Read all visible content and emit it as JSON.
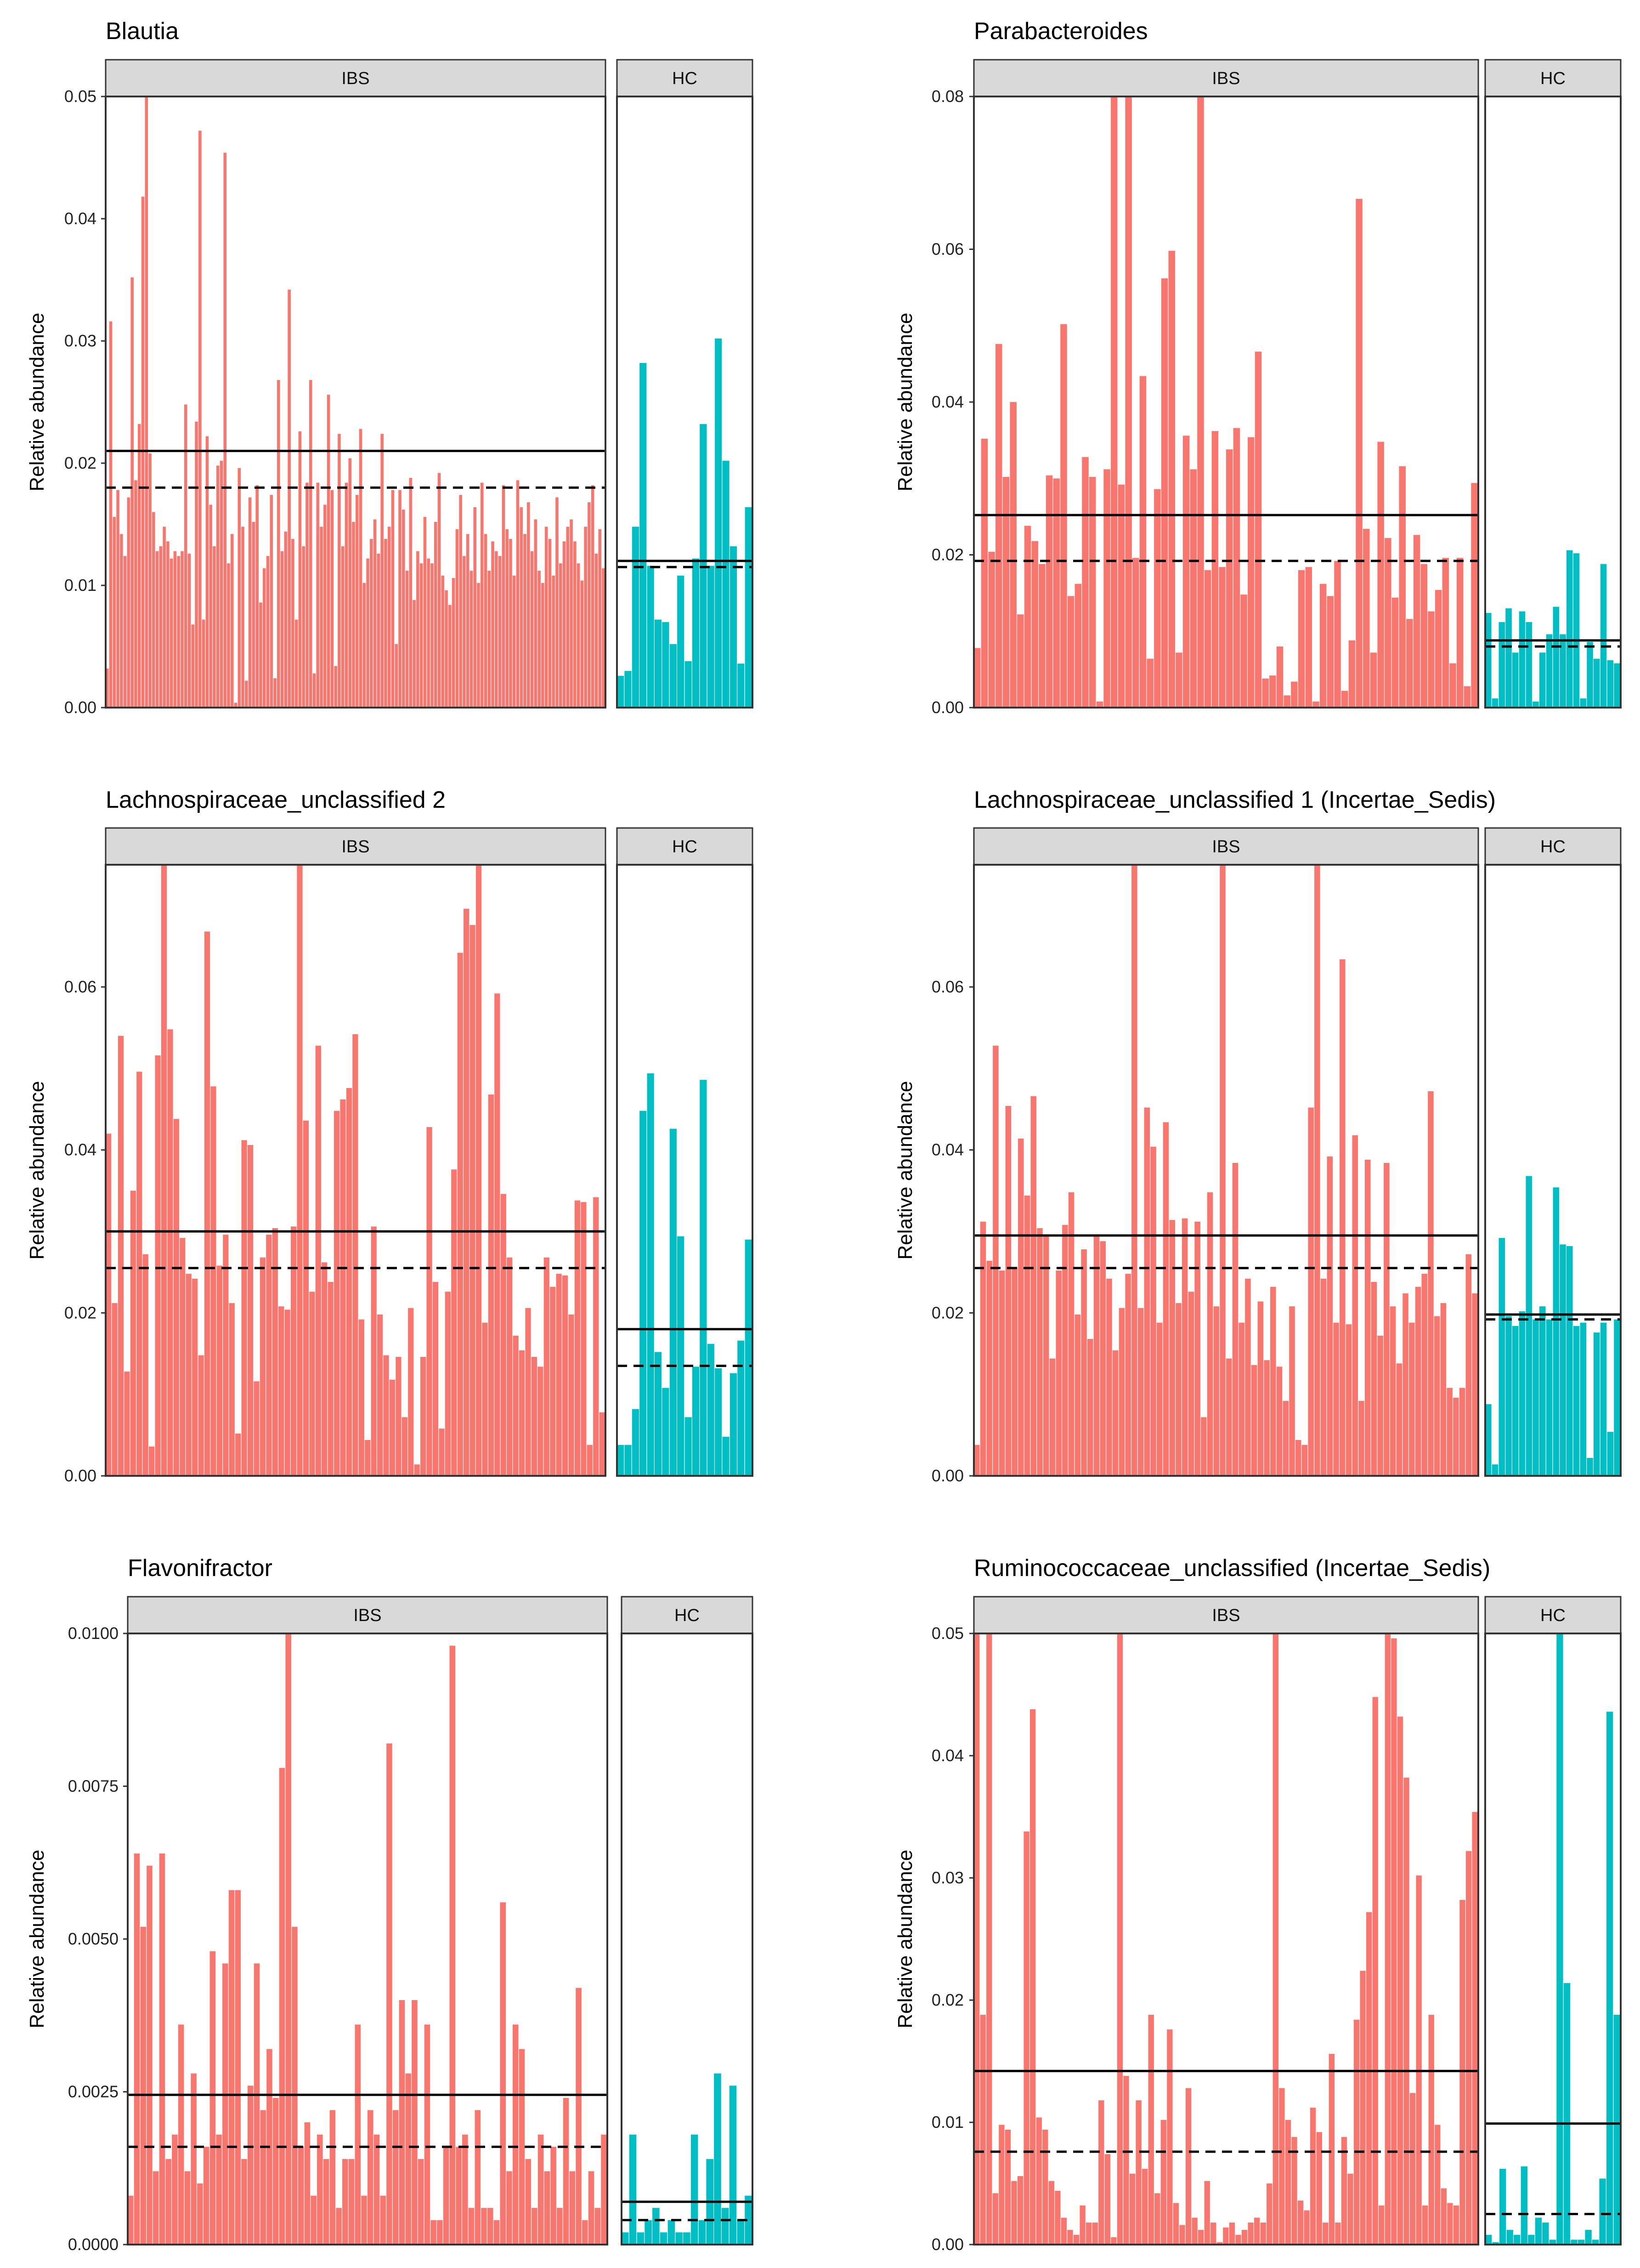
{
  "colors": {
    "ibs": "#F8766D",
    "hc": "#00BFC4",
    "strip": "#D9D9D9",
    "frame": "#333333"
  },
  "chart_data": [
    {
      "type": "bar",
      "title": "Blautia",
      "ylabel": "Relative abundance",
      "ylim": [
        0,
        0.05
      ],
      "yticks": [
        "0.00",
        "0.01",
        "0.02",
        "0.03",
        "0.04",
        "0.05"
      ],
      "ytick_values": [
        0,
        0.01,
        0.02,
        0.03,
        0.04,
        0.05
      ],
      "facets": [
        {
          "label": "IBS",
          "mean": 0.021,
          "median": 0.018,
          "values": [
            0.0032,
            0.0316,
            0.0156,
            0.0178,
            0.0142,
            0.0124,
            0.0172,
            0.0352,
            0.0186,
            0.0232,
            0.0418,
            0.05,
            0.0208,
            0.016,
            0.0128,
            0.0132,
            0.0148,
            0.0136,
            0.0122,
            0.0128,
            0.0124,
            0.0128,
            0.0248,
            0.0126,
            0.0068,
            0.0234,
            0.0472,
            0.0072,
            0.0222,
            0.0166,
            0.0132,
            0.0198,
            0.0202,
            0.0454,
            0.0118,
            0.0142,
            0.0004,
            0.0196,
            0.0148,
            0.0022,
            0.0172,
            0.0152,
            0.0182,
            0.0086,
            0.0114,
            0.0124,
            0.0174,
            0.0024,
            0.0268,
            0.0128,
            0.0144,
            0.0342,
            0.0138,
            0.0072,
            0.0226,
            0.0132,
            0.0184,
            0.0268,
            0.0028,
            0.0184,
            0.0148,
            0.0166,
            0.0256,
            0.0178,
            0.0034,
            0.0224,
            0.0132,
            0.0184,
            0.0204,
            0.0152,
            0.0174,
            0.0228,
            0.0102,
            0.0122,
            0.0138,
            0.0154,
            0.0126,
            0.0224,
            0.0138,
            0.0148,
            0.0178,
            0.0052,
            0.0178,
            0.0162,
            0.0112,
            0.0188,
            0.0088,
            0.0128,
            0.0118,
            0.0156,
            0.0122,
            0.0118,
            0.0152,
            0.0192,
            0.0108,
            0.0096,
            0.0084,
            0.0106,
            0.0146,
            0.0174,
            0.0124,
            0.0142,
            0.0112,
            0.0164,
            0.0102,
            0.0184,
            0.0142,
            0.0112,
            0.0136,
            0.0128,
            0.0124,
            0.0182,
            0.0146,
            0.0138,
            0.0108,
            0.0186,
            0.0164,
            0.0142,
            0.0168,
            0.0128,
            0.0154,
            0.0112,
            0.0102,
            0.0148,
            0.0138,
            0.0108,
            0.0172,
            0.0118,
            0.0136,
            0.0148,
            0.0154,
            0.0136,
            0.0118,
            0.0104,
            0.0148,
            0.0168,
            0.0182,
            0.0126,
            0.0146,
            0.0114
          ]
        },
        {
          "label": "HC",
          "mean": 0.012,
          "median": 0.0115,
          "values": [
            0.0026,
            0.003,
            0.0148,
            0.0282,
            0.0116,
            0.0072,
            0.007,
            0.0052,
            0.0108,
            0.0038,
            0.0122,
            0.0232,
            0.0116,
            0.0302,
            0.0202,
            0.0132,
            0.0036,
            0.0164
          ]
        }
      ]
    },
    {
      "type": "bar",
      "title": "Parabacteroides",
      "ylabel": "Relative abundance",
      "ylim": [
        0,
        0.08
      ],
      "yticks": [
        "0.00",
        "0.02",
        "0.04",
        "0.06",
        "0.08"
      ],
      "ytick_values": [
        0,
        0.02,
        0.04,
        0.06,
        0.08
      ],
      "facets": [
        {
          "label": "IBS",
          "mean": 0.0252,
          "median": 0.0192,
          "values": [
            0.0078,
            0.0352,
            0.0204,
            0.0476,
            0.0302,
            0.04,
            0.0122,
            0.0238,
            0.0218,
            0.0188,
            0.0304,
            0.03,
            0.0502,
            0.0146,
            0.0162,
            0.0328,
            0.0302,
            0.0008,
            0.0312,
            0.08,
            0.0292,
            0.08,
            0.0196,
            0.0434,
            0.0064,
            0.0286,
            0.0562,
            0.0598,
            0.0072,
            0.0356,
            0.0312,
            0.08,
            0.018,
            0.0362,
            0.0184,
            0.0338,
            0.0366,
            0.0148,
            0.0354,
            0.0466,
            0.0038,
            0.0042,
            0.008,
            0.0016,
            0.0034,
            0.018,
            0.0184,
            0.0008,
            0.0162,
            0.0146,
            0.0192,
            0.0022,
            0.0088,
            0.0666,
            0.0234,
            0.0072,
            0.0348,
            0.0222,
            0.0144,
            0.0316,
            0.0116,
            0.0226,
            0.0188,
            0.0126,
            0.0154,
            0.0196,
            0.0058,
            0.0196,
            0.0028,
            0.0294
          ]
        },
        {
          "label": "HC",
          "mean": 0.0088,
          "median": 0.008,
          "values": [
            0.0124,
            0.0012,
            0.0112,
            0.013,
            0.0072,
            0.0126,
            0.0112,
            0.0008,
            0.0072,
            0.0096,
            0.0132,
            0.0096,
            0.0206,
            0.0202,
            0.0012,
            0.0086,
            0.0064,
            0.0188,
            0.0062,
            0.0058
          ]
        }
      ]
    },
    {
      "type": "bar",
      "title": "Lachnospiraceae_unclassified 2",
      "ylabel": "Relative abundance",
      "ylim": [
        0,
        0.075
      ],
      "yticks": [
        "0.00",
        "0.02",
        "0.04",
        "0.06"
      ],
      "ytick_values": [
        0,
        0.02,
        0.04,
        0.06
      ],
      "facets": [
        {
          "label": "IBS",
          "mean": 0.03,
          "median": 0.0255,
          "values": [
            0.042,
            0.0212,
            0.054,
            0.0128,
            0.035,
            0.0496,
            0.0272,
            0.0036,
            0.0516,
            0.075,
            0.0548,
            0.0438,
            0.0292,
            0.0248,
            0.0242,
            0.0148,
            0.0668,
            0.0478,
            0.0258,
            0.0296,
            0.0212,
            0.0052,
            0.0412,
            0.0406,
            0.0116,
            0.0268,
            0.0296,
            0.0304,
            0.0208,
            0.0204,
            0.0306,
            0.075,
            0.0436,
            0.0226,
            0.0528,
            0.0262,
            0.0238,
            0.0448,
            0.0462,
            0.0476,
            0.0542,
            0.0192,
            0.0044,
            0.0306,
            0.0198,
            0.0148,
            0.0118,
            0.0146,
            0.0072,
            0.0206,
            0.0014,
            0.0146,
            0.0428,
            0.0238,
            0.0058,
            0.0226,
            0.0376,
            0.0642,
            0.0696,
            0.0676,
            0.075,
            0.0188,
            0.0468,
            0.0592,
            0.0346,
            0.0268,
            0.0172,
            0.0154,
            0.0206,
            0.0146,
            0.0134,
            0.0268,
            0.0232,
            0.0248,
            0.0246,
            0.0198,
            0.0338,
            0.0336,
            0.0038,
            0.0342,
            0.0078
          ]
        },
        {
          "label": "HC",
          "mean": 0.018,
          "median": 0.0135,
          "values": [
            0.0038,
            0.0038,
            0.0082,
            0.0448,
            0.0494,
            0.0152,
            0.0108,
            0.0426,
            0.0294,
            0.0072,
            0.0134,
            0.0486,
            0.0162,
            0.0132,
            0.0048,
            0.0126,
            0.0166,
            0.029
          ]
        }
      ]
    },
    {
      "type": "bar",
      "title": "Lachnospiraceae_unclassified 1 (Incertae_Sedis)",
      "ylabel": "Relative abundance",
      "ylim": [
        0,
        0.075
      ],
      "yticks": [
        "0.00",
        "0.02",
        "0.04",
        "0.06"
      ],
      "ytick_values": [
        0,
        0.02,
        0.04,
        0.06
      ],
      "facets": [
        {
          "label": "IBS",
          "mean": 0.0295,
          "median": 0.0255,
          "values": [
            0.0038,
            0.0312,
            0.0264,
            0.0528,
            0.0252,
            0.0454,
            0.0256,
            0.0414,
            0.0344,
            0.0466,
            0.0304,
            0.0296,
            0.0144,
            0.0252,
            0.0308,
            0.0348,
            0.0198,
            0.0278,
            0.0168,
            0.0294,
            0.0288,
            0.0242,
            0.0154,
            0.0206,
            0.0248,
            0.075,
            0.0206,
            0.0452,
            0.0404,
            0.0188,
            0.0434,
            0.0314,
            0.0212,
            0.0316,
            0.0226,
            0.0312,
            0.0072,
            0.0348,
            0.0208,
            0.075,
            0.0144,
            0.0384,
            0.0188,
            0.0242,
            0.0136,
            0.0214,
            0.0142,
            0.0232,
            0.0134,
            0.0092,
            0.0208,
            0.0044,
            0.0038,
            0.0452,
            0.075,
            0.0242,
            0.0392,
            0.0188,
            0.0634,
            0.0186,
            0.0418,
            0.0092,
            0.0388,
            0.0238,
            0.0172,
            0.0384,
            0.0208,
            0.0138,
            0.0224,
            0.0188,
            0.0232,
            0.0248,
            0.0472,
            0.0196,
            0.0212,
            0.0108,
            0.0096,
            0.0108,
            0.0272,
            0.0224
          ]
        },
        {
          "label": "HC",
          "mean": 0.0198,
          "median": 0.0192,
          "values": [
            0.0088,
            0.0014,
            0.0292,
            0.0196,
            0.0184,
            0.0202,
            0.0368,
            0.0192,
            0.0208,
            0.0192,
            0.0354,
            0.0284,
            0.0282,
            0.0184,
            0.0188,
            0.0022,
            0.0176,
            0.0188,
            0.0054,
            0.0192
          ]
        }
      ]
    },
    {
      "type": "bar",
      "title": "Flavonifractor",
      "ylabel": "Relative abundance",
      "ylim": [
        0,
        0.01
      ],
      "yticks": [
        "0.0000",
        "0.0025",
        "0.0050",
        "0.0075",
        "0.0100"
      ],
      "ytick_values": [
        0,
        0.0025,
        0.005,
        0.0075,
        0.01
      ],
      "facets": [
        {
          "label": "IBS",
          "mean": 0.00245,
          "median": 0.0016,
          "values": [
            0.0008,
            0.0064,
            0.0052,
            0.0062,
            0.0012,
            0.0064,
            0.0014,
            0.0018,
            0.0036,
            0.0012,
            0.0028,
            0.001,
            0.0016,
            0.0048,
            0.0018,
            0.0046,
            0.0058,
            0.0058,
            0.0014,
            0.0026,
            0.0046,
            0.0022,
            0.0032,
            0.0024,
            0.0078,
            0.01,
            0.0052,
            0.0016,
            0.002,
            0.0008,
            0.0018,
            0.0014,
            0.0022,
            0.0006,
            0.0014,
            0.0014,
            0.0036,
            0.0008,
            0.0022,
            0.0018,
            0.0008,
            0.0082,
            0.0022,
            0.004,
            0.0028,
            0.004,
            0.0014,
            0.0036,
            0.0004,
            0.0004,
            0.0016,
            0.0098,
            0.0016,
            0.0018,
            0.0006,
            0.0022,
            0.0006,
            0.0006,
            0.0004,
            0.0056,
            0.0012,
            0.0036,
            0.0032,
            0.0014,
            0.0006,
            0.0018,
            0.0012,
            0.0016,
            0.0006,
            0.0024,
            0.0012,
            0.0042,
            0.0004,
            0.0012,
            0.0006,
            0.0018
          ]
        },
        {
          "label": "HC",
          "mean": 0.0007,
          "median": 0.0004,
          "values": [
            0.0002,
            0.0018,
            0.0002,
            0.0004,
            0.0006,
            0.0002,
            0.0004,
            0.0002,
            0.0002,
            0.0018,
            0.0004,
            0.0014,
            0.0028,
            0.0006,
            0.0026,
            0.0004,
            0.0008
          ]
        }
      ]
    },
    {
      "type": "bar",
      "title": "Ruminococcaceae_unclassified (Incertae_Sedis)",
      "ylabel": "Relative abundance",
      "ylim": [
        0,
        0.05
      ],
      "yticks": [
        "0.00",
        "0.01",
        "0.02",
        "0.03",
        "0.04",
        "0.05"
      ],
      "ytick_values": [
        0,
        0.01,
        0.02,
        0.03,
        0.04,
        0.05
      ],
      "facets": [
        {
          "label": "IBS",
          "mean": 0.0142,
          "median": 0.0076,
          "values": [
            0.05,
            0.0188,
            0.05,
            0.0042,
            0.0098,
            0.0094,
            0.0052,
            0.0056,
            0.0338,
            0.0438,
            0.0104,
            0.0094,
            0.0052,
            0.0044,
            0.0022,
            0.0012,
            0.0008,
            0.0032,
            0.0018,
            0.0018,
            0.0118,
            0.0074,
            0.0006,
            0.05,
            0.0138,
            0.0058,
            0.0118,
            0.0062,
            0.0188,
            0.0042,
            0.0102,
            0.0176,
            0.0034,
            0.0016,
            0.0128,
            0.0022,
            0.0012,
            0.0052,
            0.0018,
            0.0002,
            0.0014,
            0.0018,
            0.0008,
            0.0012,
            0.0018,
            0.0022,
            0.0018,
            0.005,
            0.05,
            0.0128,
            0.0102,
            0.0088,
            0.0036,
            0.0028,
            0.0112,
            0.0092,
            0.0018,
            0.0156,
            0.0018,
            0.0088,
            0.0058,
            0.0184,
            0.0224,
            0.0272,
            0.0448,
            0.0032,
            0.05,
            0.0496,
            0.0432,
            0.0382,
            0.0124,
            0.0302,
            0.0032,
            0.0188,
            0.0098,
            0.0046,
            0.0034,
            0.0032,
            0.0282,
            0.0322,
            0.0354
          ]
        },
        {
          "label": "HC",
          "mean": 0.0099,
          "median": 0.0025,
          "values": [
            0.0008,
            0.0002,
            0.0062,
            0.0012,
            0.0008,
            0.0064,
            0.0008,
            0.0022,
            0.0018,
            0.0004,
            0.05,
            0.0214,
            0.0004,
            0.0004,
            0.0012,
            0.0004,
            0.0054,
            0.0436,
            0.0188
          ]
        }
      ]
    }
  ]
}
